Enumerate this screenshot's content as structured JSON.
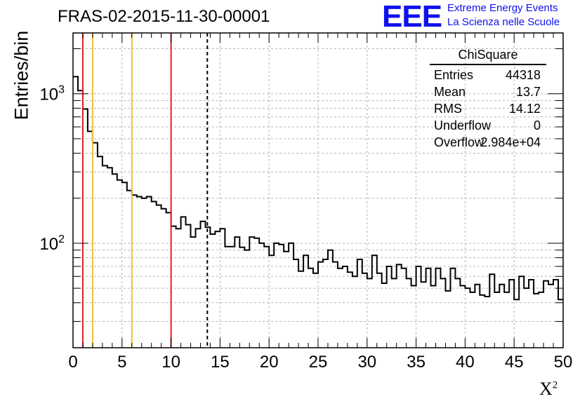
{
  "chart_data": {
    "type": "histogram",
    "title": "FRAS-02-2015-11-30-00001",
    "xlabel": "X",
    "xlabel_sup": "2",
    "ylabel": "Entries/bin",
    "xlim": [
      0,
      50
    ],
    "ylim": [
      20,
      2550
    ],
    "yscale": "log",
    "xticks": [
      0,
      5,
      10,
      15,
      20,
      25,
      30,
      35,
      40,
      45,
      50
    ],
    "yticks": [
      {
        "value": 100,
        "label": "10",
        "exp": "2"
      },
      {
        "value": 1000,
        "label": "10",
        "exp": "3"
      }
    ],
    "bin_width": 0.5,
    "bin_start": 0,
    "values": [
      1300,
      1050,
      790,
      560,
      470,
      380,
      330,
      320,
      290,
      265,
      255,
      225,
      210,
      205,
      200,
      205,
      190,
      180,
      170,
      160,
      130,
      125,
      150,
      133,
      110,
      125,
      140,
      128,
      115,
      120,
      125,
      95,
      95,
      110,
      94,
      90,
      110,
      108,
      100,
      95,
      83,
      100,
      98,
      88,
      100,
      78,
      65,
      83,
      68,
      63,
      75,
      78,
      90,
      75,
      68,
      70,
      64,
      60,
      78,
      63,
      58,
      83,
      63,
      54,
      70,
      58,
      72,
      68,
      58,
      52,
      70,
      55,
      68,
      52,
      68,
      58,
      48,
      68,
      58,
      52,
      50,
      47,
      53,
      45,
      44,
      62,
      47,
      53,
      47,
      57,
      42,
      60,
      50,
      57,
      46,
      47,
      56,
      53,
      57,
      42
    ],
    "vertical_lines": [
      {
        "x": 1,
        "color": "#dd2222",
        "style": "solid"
      },
      {
        "x": 2,
        "color": "#f2c12e",
        "style": "solid"
      },
      {
        "x": 6,
        "color": "#f2c12e",
        "style": "solid"
      },
      {
        "x": 10,
        "color": "#dd2222",
        "style": "solid"
      },
      {
        "x": 13.7,
        "color": "#000000",
        "style": "dashed"
      }
    ],
    "grid": true
  },
  "stats_box": {
    "title": "ChiSquare",
    "rows": [
      {
        "key": "Entries",
        "value": "44318"
      },
      {
        "key": "Mean",
        "value": "13.7"
      },
      {
        "key": "RMS",
        "value": "14.12"
      },
      {
        "key": "Underflow",
        "value": "0"
      },
      {
        "key": "Overflow",
        "value": "2.984e+04"
      }
    ]
  },
  "logo": {
    "mark": "EEE",
    "line1": "Extreme Energy Events",
    "line2": "La Scienza nelle Scuole"
  }
}
